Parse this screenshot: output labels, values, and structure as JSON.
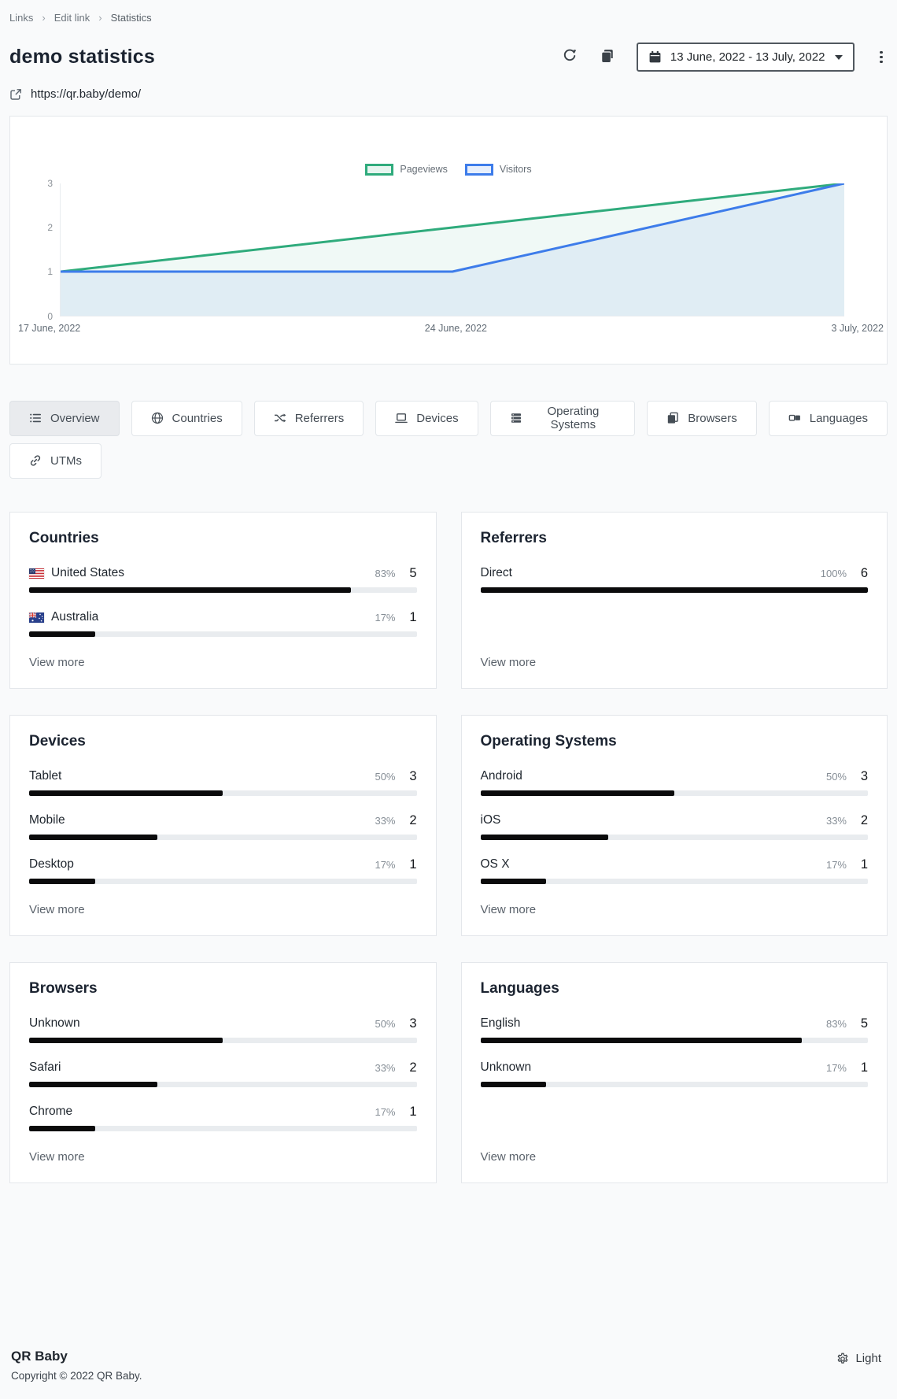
{
  "breadcrumb": {
    "items": [
      {
        "label": "Links"
      },
      {
        "label": "Edit link"
      },
      {
        "label": "Statistics"
      }
    ]
  },
  "header": {
    "title": "demo statistics",
    "url": "https://qr.baby/demo/",
    "date_range_label": "13 June, 2022 - 13 July, 2022",
    "controls": {
      "refresh_icon": "refresh-icon",
      "copy_icon": "copy-icon",
      "calendar_icon": "calendar-icon",
      "menu_icon": "kebab-menu-icon"
    }
  },
  "chart_data": {
    "type": "area",
    "title": "",
    "x_labels": [
      "17 June, 2022",
      "24 June, 2022",
      "3 July, 2022"
    ],
    "series": [
      {
        "name": "Pageviews",
        "color": "#2fab7c",
        "values": [
          1,
          2,
          3
        ]
      },
      {
        "name": "Visitors",
        "color": "#3d7cea",
        "values": [
          1,
          1,
          3
        ]
      }
    ],
    "ylim": [
      0,
      3
    ],
    "yticks": [
      3,
      2,
      1,
      0
    ],
    "legend_position": "top-center",
    "grid": false
  },
  "tab_rows": [
    [
      {
        "label": "Overview",
        "icon": "list-icon",
        "active": true
      },
      {
        "label": "Countries",
        "icon": "globe-icon",
        "active": false
      },
      {
        "label": "Referrers",
        "icon": "shuffle-icon",
        "active": false
      },
      {
        "label": "Devices",
        "icon": "laptop-icon",
        "active": false
      },
      {
        "label": "Operating Systems",
        "icon": "server-icon",
        "active": false
      },
      {
        "label": "Browsers",
        "icon": "browser-icon",
        "active": false
      },
      {
        "label": "Languages",
        "icon": "translate-icon",
        "active": false
      }
    ],
    [
      {
        "label": "UTMs",
        "icon": "link-icon",
        "active": false
      }
    ]
  ],
  "cards": [
    {
      "title": "Countries",
      "view_more": "View more",
      "rows": [
        {
          "label": "United States",
          "flag": "us",
          "percent": "83%",
          "count": "5",
          "value": 83
        },
        {
          "label": "Australia",
          "flag": "au",
          "percent": "17%",
          "count": "1",
          "value": 17
        }
      ]
    },
    {
      "title": "Referrers",
      "view_more": "View more",
      "rows": [
        {
          "label": "Direct",
          "percent": "100%",
          "count": "6",
          "value": 100
        }
      ]
    },
    {
      "title": "Devices",
      "view_more": "View more",
      "rows": [
        {
          "label": "Tablet",
          "percent": "50%",
          "count": "3",
          "value": 50
        },
        {
          "label": "Mobile",
          "percent": "33%",
          "count": "2",
          "value": 33
        },
        {
          "label": "Desktop",
          "percent": "17%",
          "count": "1",
          "value": 17
        }
      ]
    },
    {
      "title": "Operating Systems",
      "view_more": "View more",
      "rows": [
        {
          "label": "Android",
          "percent": "50%",
          "count": "3",
          "value": 50
        },
        {
          "label": "iOS",
          "percent": "33%",
          "count": "2",
          "value": 33
        },
        {
          "label": "OS X",
          "percent": "17%",
          "count": "1",
          "value": 17
        }
      ]
    },
    {
      "title": "Browsers",
      "view_more": "View more",
      "rows": [
        {
          "label": "Unknown",
          "percent": "50%",
          "count": "3",
          "value": 50
        },
        {
          "label": "Safari",
          "percent": "33%",
          "count": "2",
          "value": 33
        },
        {
          "label": "Chrome",
          "percent": "17%",
          "count": "1",
          "value": 17
        }
      ]
    },
    {
      "title": "Languages",
      "view_more": "View more",
      "rows": [
        {
          "label": "English",
          "percent": "83%",
          "count": "5",
          "value": 83
        },
        {
          "label": "Unknown",
          "percent": "17%",
          "count": "1",
          "value": 17
        }
      ]
    }
  ],
  "footer": {
    "brand": "QR Baby",
    "copyright": "Copyright © 2022 QR Baby.",
    "theme_label": "Light",
    "theme_icon": "gear-icon"
  },
  "colors": {
    "pageviews_green": "#2fab7c",
    "visitors_blue": "#3d7cea",
    "bar_fill": "#0b0b0c",
    "bar_track": "#e9ecef",
    "card_border": "#e4e7eb",
    "page_background": "#f9fafb"
  }
}
